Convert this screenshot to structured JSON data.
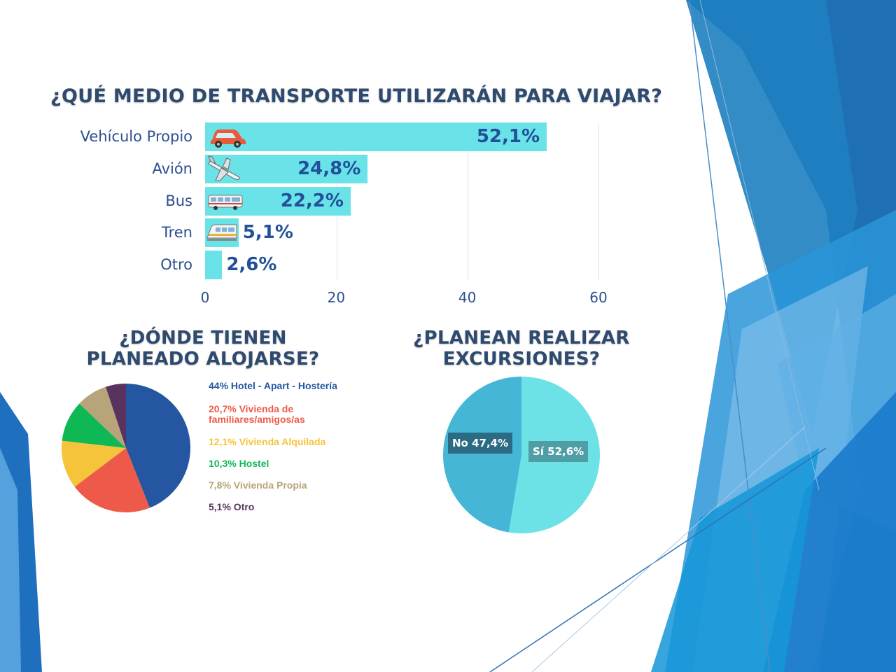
{
  "colors": {
    "bar": "#69e2e8",
    "text_blue": "#2b4f8f",
    "title": "#2e4a6e"
  },
  "chart_data": [
    {
      "type": "bar",
      "orientation": "horizontal",
      "title": "¿QUÉ MEDIO DE TRANSPORTE UTILIZARÁN PARA VIAJAR?",
      "categories": [
        "Vehículo Propio",
        "Avión",
        "Bus",
        "Tren",
        "Otro"
      ],
      "values": [
        52.1,
        24.8,
        22.2,
        5.1,
        2.6
      ],
      "value_labels": [
        "52,1%",
        "24,8%",
        "22,2%",
        "5,1%",
        "2,6%"
      ],
      "icons": [
        "car-icon",
        "airplane-icon",
        "bus-icon",
        "train-icon",
        ""
      ],
      "xlim": [
        0,
        60
      ],
      "xticks": [
        0,
        20,
        40,
        60
      ],
      "grid": true
    },
    {
      "type": "pie",
      "title": "¿DÓNDE TIENEN PLANEADO ALOJARSE?",
      "slices": [
        {
          "label": "44% Hotel - Apart - Hostería",
          "value": 44,
          "color": "#2556a1"
        },
        {
          "label": "20,7% Vivienda de familiares/amigos/as",
          "value": 20.7,
          "color": "#ee5a49"
        },
        {
          "label": "12,1% Vivienda Alquilada",
          "value": 12.1,
          "color": "#f5c43a"
        },
        {
          "label": "10,3% Hostel",
          "value": 10.3,
          "color": "#0fb854"
        },
        {
          "label": "7,8% Vivienda Propia",
          "value": 7.8,
          "color": "#b7a47a"
        },
        {
          "label": "5,1% Otro",
          "value": 5.1,
          "color": "#59325e"
        }
      ],
      "legend_position": "right"
    },
    {
      "type": "pie",
      "title": "¿PLANEAN REALIZAR EXCURSIONES?",
      "slices": [
        {
          "label": "Sí 52,6%",
          "value": 52.6,
          "color": "#6ce2e6",
          "label_bg": "#4f9ea5"
        },
        {
          "label": "No 47,4%",
          "value": 47.4,
          "color": "#45b6d6",
          "label_bg": "#2b6b84"
        }
      ]
    }
  ]
}
